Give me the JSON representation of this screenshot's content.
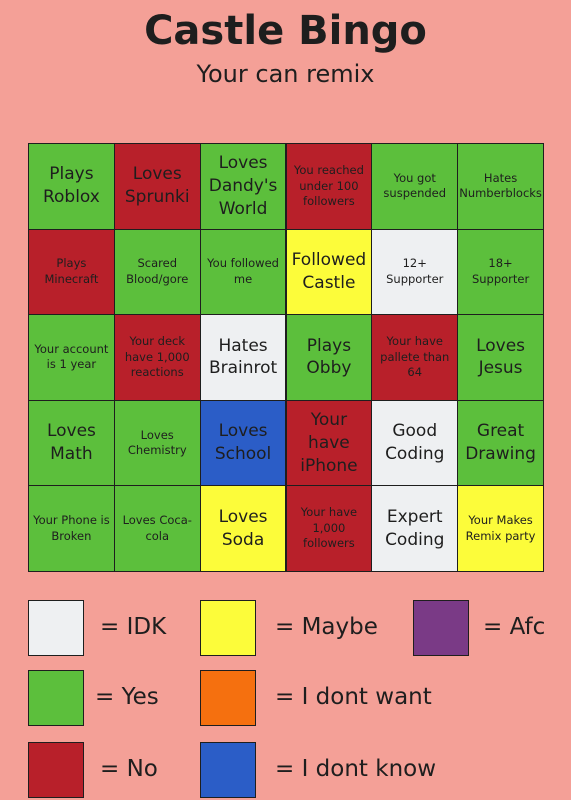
{
  "header": {
    "title": "Castle Bingo",
    "subtitle": "Your can remix"
  },
  "grid": {
    "rows": [
      [
        {
          "text": "Plays Roblox",
          "color": "#5cbf3c"
        },
        {
          "text": "Loves Sprunki",
          "color": "#b8202a"
        },
        {
          "text": "Loves Dandy's World",
          "color": "#5cbf3c"
        },
        {
          "text": "You reached under 100 followers",
          "color": "#b8202a"
        },
        {
          "text": "You got suspended",
          "color": "#5cbf3c"
        },
        {
          "text": "Hates Numberblocks",
          "color": "#5cbf3c"
        }
      ],
      [
        {
          "text": "Plays Minecraft",
          "color": "#b8202a"
        },
        {
          "text": "Scared Blood/gore",
          "color": "#5cbf3c"
        },
        {
          "text": "You followed me",
          "color": "#5cbf3c"
        },
        {
          "text": "Followed Castle",
          "color": "#fcfc3a"
        },
        {
          "text": "12+ Supporter",
          "color": "#eef0f2"
        },
        {
          "text": "18+ Supporter",
          "color": "#5cbf3c"
        }
      ],
      [
        {
          "text": "Your account is 1 year",
          "color": "#5cbf3c"
        },
        {
          "text": "Your deck have 1,000 reactions",
          "color": "#b8202a"
        },
        {
          "text": "Hates Brainrot",
          "color": "#eef0f2"
        },
        {
          "text": "Plays Obby",
          "color": "#5cbf3c"
        },
        {
          "text": "Your have pallete than 64",
          "color": "#b8202a"
        },
        {
          "text": "Loves Jesus",
          "color": "#5cbf3c"
        }
      ],
      [
        {
          "text": "Loves Math",
          "color": "#5cbf3c"
        },
        {
          "text": "Loves Chemistry",
          "color": "#5cbf3c"
        },
        {
          "text": "Loves School",
          "color": "#2b5dc7"
        },
        {
          "text": "Your have iPhone",
          "color": "#b8202a"
        },
        {
          "text": "Good Coding",
          "color": "#eef0f2"
        },
        {
          "text": "Great Drawing",
          "color": "#5cbf3c"
        }
      ],
      [
        {
          "text": "Your Phone is Broken",
          "color": "#5cbf3c"
        },
        {
          "text": "Loves Coca-cola",
          "color": "#5cbf3c"
        },
        {
          "text": "Loves Soda",
          "color": "#fcfc3a"
        },
        {
          "text": "Your have 1,000 followers",
          "color": "#b8202a"
        },
        {
          "text": "Expert Coding",
          "color": "#eef0f2"
        },
        {
          "text": "Your Makes Remix party",
          "color": "#fcfc3a"
        }
      ]
    ]
  },
  "legend": {
    "items": [
      {
        "label": "= IDK",
        "color": "#eef0f2"
      },
      {
        "label": "= Maybe",
        "color": "#fcfc3a"
      },
      {
        "label": "= Afc",
        "color": "#7a3a86"
      },
      {
        "label": "= Yes",
        "color": "#5cbf3c"
      },
      {
        "label": "= I dont want",
        "color": "#f5700f"
      },
      {
        "label": "= No",
        "color": "#b8202a"
      },
      {
        "label": "= I dont know",
        "color": "#2b5dc7"
      }
    ]
  }
}
